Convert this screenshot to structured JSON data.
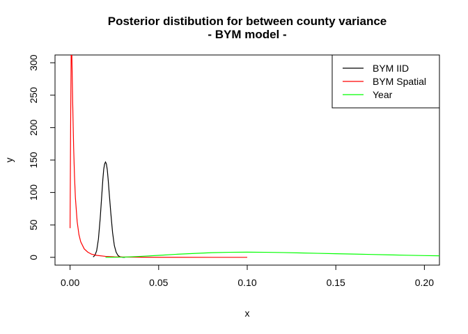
{
  "chart_data": {
    "type": "line",
    "title": "Posterior distibution for between county variance",
    "subtitle": "- BYM model -",
    "xlabel": "x",
    "ylabel": "y",
    "xlim": [
      -0.0085,
      0.2085
    ],
    "ylim": [
      -12,
      312
    ],
    "xticks": [
      0.0,
      0.05,
      0.1,
      0.15,
      0.2
    ],
    "xtick_labels": [
      "0.00",
      "0.05",
      "0.10",
      "0.15",
      "0.20"
    ],
    "yticks": [
      0,
      50,
      100,
      150,
      200,
      250,
      300
    ],
    "ytick_labels": [
      "0",
      "50",
      "100",
      "150",
      "200",
      "250",
      "300"
    ],
    "legend_position": "top-right",
    "grid": false,
    "series": [
      {
        "name": "BYM IID",
        "color": "#000000",
        "x": [
          0.013,
          0.014,
          0.015,
          0.016,
          0.017,
          0.018,
          0.0185,
          0.019,
          0.0195,
          0.02,
          0.0205,
          0.021,
          0.0215,
          0.022,
          0.023,
          0.024,
          0.025,
          0.026,
          0.027,
          0.028,
          0.029,
          0.03,
          0.031
        ],
        "y": [
          0.5,
          3,
          10,
          28,
          60,
          100,
          120,
          136,
          144,
          147,
          144,
          135,
          120,
          102,
          68,
          38,
          18,
          8,
          3,
          1,
          0.4,
          0.1,
          0
        ]
      },
      {
        "name": "BYM Spatial",
        "color": "#ff0000",
        "x": [
          0.0,
          0.0003,
          0.0006,
          0.001,
          0.0015,
          0.002,
          0.0025,
          0.003,
          0.004,
          0.005,
          0.006,
          0.008,
          0.01,
          0.012,
          0.015,
          0.02,
          0.025,
          0.03,
          0.04,
          0.05,
          0.06,
          0.08,
          0.1
        ],
        "y": [
          45,
          200,
          312,
          312,
          235,
          170,
          125,
          92,
          55,
          35,
          24,
          13,
          8,
          5,
          3,
          1.5,
          0.8,
          0.5,
          0.2,
          0.1,
          0.05,
          0.02,
          0.01
        ]
      },
      {
        "name": "Year",
        "color": "#00ff00",
        "x": [
          0.02,
          0.03,
          0.04,
          0.05,
          0.06,
          0.07,
          0.08,
          0.09,
          0.1,
          0.11,
          0.12,
          0.13,
          0.14,
          0.15,
          0.16,
          0.17,
          0.18,
          0.19,
          0.2,
          0.21
        ],
        "y": [
          0,
          0.3,
          1.5,
          3,
          4.7,
          6,
          7.2,
          7.8,
          8,
          7.8,
          7.4,
          6.8,
          6.2,
          5.6,
          5,
          4.4,
          3.8,
          3.2,
          2.7,
          2.3
        ]
      }
    ]
  }
}
